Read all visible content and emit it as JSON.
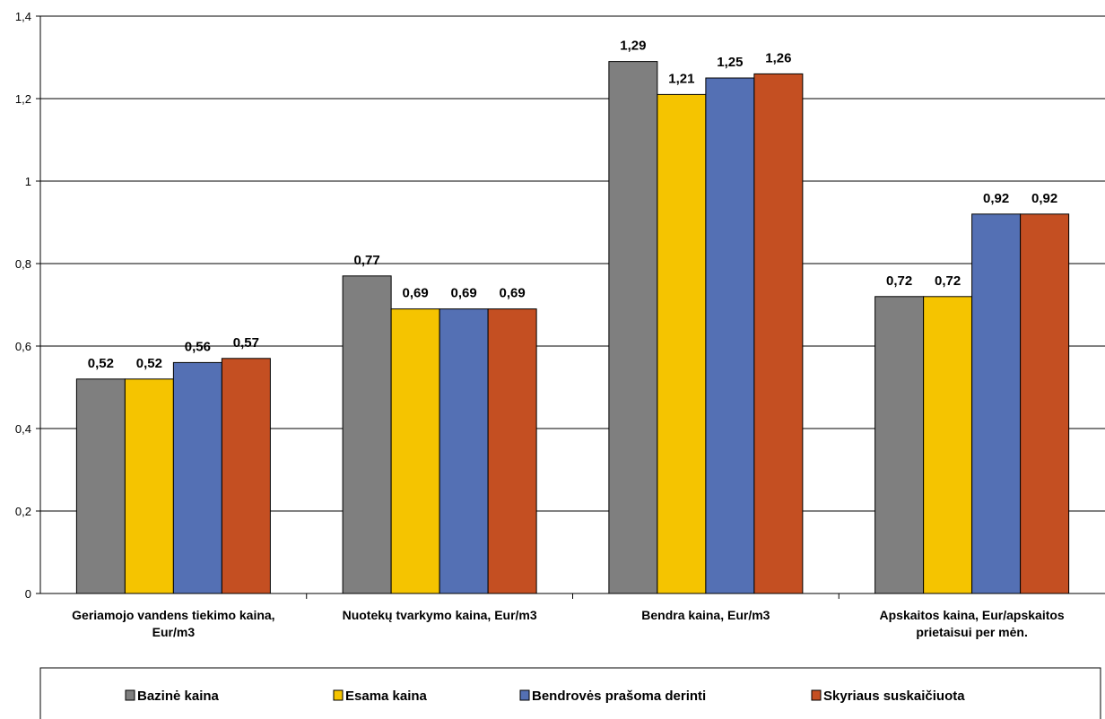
{
  "chart_data": {
    "type": "bar",
    "categories": [
      [
        "Geriamojo vandens tiekimo kaina,",
        "Eur/m3"
      ],
      [
        "Nuotekų tvarkymo kaina, Eur/m3"
      ],
      [
        "Bendra kaina, Eur/m3"
      ],
      [
        "Apskaitos kaina, Eur/apskaitos",
        "prietaisui per mėn."
      ]
    ],
    "series": [
      {
        "name": "Bazinė kaina",
        "color": "#7f7f7f",
        "values": [
          0.52,
          0.77,
          1.29,
          0.72
        ],
        "labels": [
          "0,52",
          "0,77",
          "1,29",
          "0,72"
        ]
      },
      {
        "name": "Esama kaina",
        "color": "#f5c400",
        "values": [
          0.52,
          0.69,
          1.21,
          0.72
        ],
        "labels": [
          "0,52",
          "0,69",
          "1,21",
          "0,72"
        ]
      },
      {
        "name": "Bendrovės prašoma derinti",
        "color": "#5470b4",
        "values": [
          0.56,
          0.69,
          1.25,
          0.92
        ],
        "labels": [
          "0,56",
          "0,69",
          "1,25",
          "0,92"
        ]
      },
      {
        "name": "Skyriaus suskaičiuota",
        "color": "#c44f22",
        "values": [
          0.57,
          0.69,
          1.26,
          0.92
        ],
        "labels": [
          "0,57",
          "0,69",
          "1,26",
          "0,92"
        ]
      }
    ],
    "ylim": [
      0,
      1.4
    ],
    "yticks": [
      0,
      0.2,
      0.4,
      0.6,
      0.8,
      1,
      1.2,
      1.4
    ],
    "ytick_labels": [
      "0",
      "0,2",
      "0,4",
      "0,6",
      "0,8",
      "1",
      "1,2",
      "1,4"
    ],
    "grid": true,
    "legend_position": "bottom"
  }
}
